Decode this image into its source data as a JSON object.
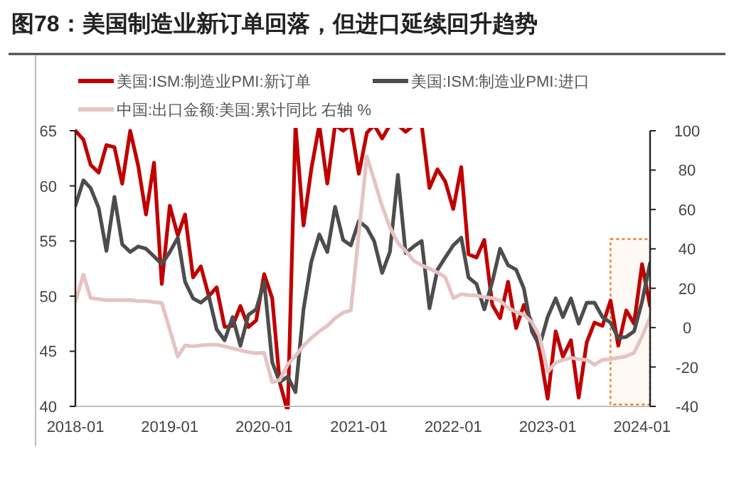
{
  "chart_data": {
    "type": "line",
    "title": "图78：美国制造业新订单回落，但进口延续回升趋势",
    "x": [
      "2018-01",
      "2018-02",
      "2018-03",
      "2018-04",
      "2018-05",
      "2018-06",
      "2018-07",
      "2018-08",
      "2018-09",
      "2018-10",
      "2018-11",
      "2018-12",
      "2019-01",
      "2019-02",
      "2019-03",
      "2019-04",
      "2019-05",
      "2019-06",
      "2019-07",
      "2019-08",
      "2019-09",
      "2019-10",
      "2019-11",
      "2019-12",
      "2020-01",
      "2020-02",
      "2020-03",
      "2020-04",
      "2020-05",
      "2020-06",
      "2020-07",
      "2020-08",
      "2020-09",
      "2020-10",
      "2020-11",
      "2020-12",
      "2021-01",
      "2021-02",
      "2021-03",
      "2021-04",
      "2021-05",
      "2021-06",
      "2021-07",
      "2021-08",
      "2021-09",
      "2021-10",
      "2021-11",
      "2021-12",
      "2022-01",
      "2022-02",
      "2022-03",
      "2022-04",
      "2022-05",
      "2022-06",
      "2022-07",
      "2022-08",
      "2022-09",
      "2022-10",
      "2022-11",
      "2022-12",
      "2023-01",
      "2023-02",
      "2023-03",
      "2023-04",
      "2023-05",
      "2023-06",
      "2023-07",
      "2023-08",
      "2023-09",
      "2023-10",
      "2023-11",
      "2023-12",
      "2024-01",
      "2024-02"
    ],
    "series": [
      {
        "name": "美国:ISM:制造业PMI:新订单",
        "color": "#c00000",
        "values": [
          65,
          64.2,
          61.9,
          61.2,
          63.7,
          63.5,
          60.2,
          65,
          61.8,
          57.4,
          62.1,
          51.1,
          58.2,
          55.5,
          57.4,
          51.7,
          52.7,
          50.0,
          50.8,
          47.2,
          47.3,
          49.1,
          47.2,
          47.8,
          52.0,
          49.8,
          42.2,
          null,
          null,
          56.4,
          61.5,
          null,
          60.2,
          null,
          65,
          null,
          61.1,
          64.8,
          null,
          64.3,
          null,
          null,
          64.9,
          null,
          null,
          59.8,
          61.5,
          60.4,
          57.9,
          61.7,
          53.8,
          53.5,
          55.1,
          49.2,
          48.0,
          51.3,
          47.1,
          49.2,
          47.6,
          45.1,
          40.7,
          46.8,
          44.5,
          46.0,
          40.8,
          45.8,
          47.6,
          47.3,
          49.6,
          45.5,
          48.7,
          47.5,
          52.9,
          49.1
        ]
      },
      {
        "name": "美国:ISM:制造业PMI:进口",
        "color": "#4d4d4d",
        "values": [
          58.2,
          60.5,
          59.8,
          58.0,
          54.1,
          59.0,
          54.7,
          54.0,
          54.5,
          54.3,
          53.6,
          52.9,
          54.0,
          55.3,
          51.3,
          49.8,
          49.4,
          50.0,
          47.0,
          46.0,
          48.1,
          45.5,
          48.3,
          48.8,
          51.3,
          44.0,
          42.2,
          42.7,
          41.3,
          48.8,
          53.1,
          55.6,
          54.0,
          58.1,
          55.1,
          54.6,
          56.8,
          56.2,
          55.0,
          52.1,
          54.0,
          61.0,
          53.9,
          54.5,
          55.0,
          48.9,
          52.4,
          53.5,
          54.6,
          55.3,
          51.7,
          51.1,
          48.8,
          51.3,
          54.3,
          52.8,
          52.4,
          50.7,
          46.8,
          45.5,
          48.1,
          49.8,
          48.1,
          49.8,
          47.5,
          49.4,
          49.4,
          48.1,
          47.6,
          46.2,
          46.3,
          46.8,
          49.5,
          53.0
        ]
      },
      {
        "name": "中国:出口金额:美国:累计同比 右轴 %",
        "color": "#e6c3c3",
        "axis": "y2",
        "x": [
          "2018-01",
          "2018-02",
          "2018-03",
          "2018-04",
          "2018-05",
          "2018-06",
          "2018-07",
          "2018-08",
          "2018-09",
          "2018-10",
          "2018-11",
          "2018-12",
          "2019-02",
          "2019-03",
          "2019-04",
          "2019-05",
          "2019-06",
          "2019-07",
          "2019-08",
          "2019-09",
          "2019-10",
          "2019-11",
          "2019-12",
          "2020-01",
          "2020-02",
          "2020-03",
          "2020-04",
          "2020-05",
          "2020-06",
          "2020-07",
          "2020-08",
          "2020-09",
          "2020-10",
          "2020-11",
          "2020-12",
          "2021-02",
          "2021-03",
          "2021-04",
          "2021-05",
          "2021-06",
          "2021-07",
          "2021-08",
          "2021-09",
          "2021-10",
          "2021-11",
          "2021-12",
          "2022-01",
          "2022-02",
          "2022-03",
          "2022-04",
          "2022-05",
          "2022-06",
          "2022-07",
          "2022-08",
          "2022-09",
          "2022-10",
          "2022-11",
          "2022-12",
          "2023-01",
          "2023-02",
          "2023-03",
          "2023-04",
          "2023-05",
          "2023-06",
          "2023-07",
          "2023-08",
          "2023-09",
          "2023-10",
          "2023-11",
          "2023-12",
          "2024-01",
          "2024-02"
        ],
        "values": [
          13,
          27,
          15,
          14.5,
          14,
          14,
          14,
          14,
          13.5,
          13.5,
          13,
          12.5,
          -14.7,
          -9,
          -9.5,
          -9,
          -8.7,
          -8.7,
          -9.5,
          -10.5,
          -11.5,
          -12.5,
          -13,
          -12.8,
          -27.7,
          -26.6,
          -18.8,
          -14.3,
          -9.2,
          -5.3,
          -1.9,
          0.9,
          4.8,
          7.6,
          8.7,
          87,
          75,
          61.7,
          51,
          43,
          39,
          34,
          31.7,
          30,
          28,
          25.7,
          15,
          17,
          16.5,
          16.3,
          15.5,
          15,
          13.7,
          10,
          8,
          6.4,
          2.8,
          -4.5,
          -22.5,
          -17.7,
          -16.5,
          -15.3,
          -16,
          -16.4,
          -18.8,
          -16.4,
          -16,
          -15.3,
          -14.5,
          -12.8,
          -4.5,
          5.2
        ]
      }
    ],
    "xlim": [
      "2018-01",
      "2024-02"
    ],
    "xticks": [
      "2018-01",
      "2019-01",
      "2020-01",
      "2021-01",
      "2022-01",
      "2023-01",
      "2024-01"
    ],
    "ylim": [
      40,
      65
    ],
    "yticks": [
      40,
      45,
      50,
      55,
      60,
      65
    ],
    "y2lim": [
      -40,
      100
    ],
    "y2ticks": [
      -40,
      -20,
      0,
      20,
      40,
      60,
      80,
      100
    ],
    "bands": [
      {
        "axis": "x",
        "from": "2023-09",
        "to": "2024-02",
        "color": "#f08020"
      }
    ],
    "grid": false,
    "legend": "top",
    "line_style": "solid",
    "marker": "none"
  }
}
